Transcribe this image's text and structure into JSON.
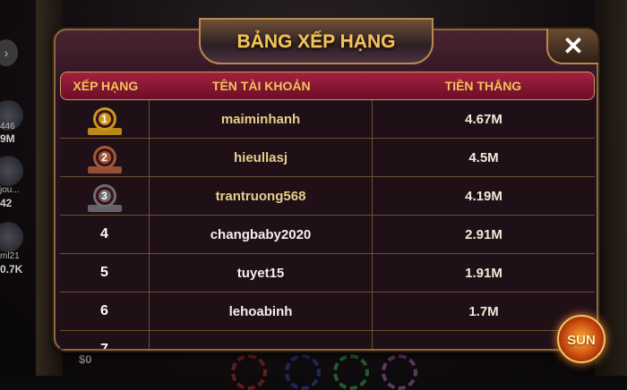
{
  "title": "BẢNG XẾP HẠNG",
  "close_label": "✕",
  "columns": {
    "rank": "XẾP HẠNG",
    "account": "TÊN TÀI KHOẢN",
    "winnings": "TIỀN THẮNG"
  },
  "rows": [
    {
      "rank": "1",
      "account": "maiminhanh",
      "winnings": "4.67M",
      "medal": "gold"
    },
    {
      "rank": "2",
      "account": "hieullasj",
      "winnings": "4.5M",
      "medal": "bronze"
    },
    {
      "rank": "3",
      "account": "trantruong568",
      "winnings": "4.19M",
      "medal": "silver"
    },
    {
      "rank": "4",
      "account": "changbaby2020",
      "winnings": "2.91M"
    },
    {
      "rank": "5",
      "account": "tuyet15",
      "winnings": "1.91M"
    },
    {
      "rank": "6",
      "account": "lehoabinh",
      "winnings": "1.7M"
    },
    {
      "rank": "7",
      "account": "",
      "winnings": ""
    }
  ],
  "medal_colors": {
    "gold": "#c9961e",
    "bronze": "#a0583a",
    "silver": "#6d6d72"
  },
  "background": {
    "side_players": [
      {
        "name": "446",
        "value": "9M"
      },
      {
        "name": "jou...",
        "value": "42"
      },
      {
        "name": "ml21",
        "value": "0.7K"
      }
    ],
    "balance": "$0",
    "logo": "SUN"
  },
  "colors": {
    "accent_gold": "#f2c35a",
    "header_crimson": "#a5213f",
    "panel_bg": "#1f0f17"
  }
}
